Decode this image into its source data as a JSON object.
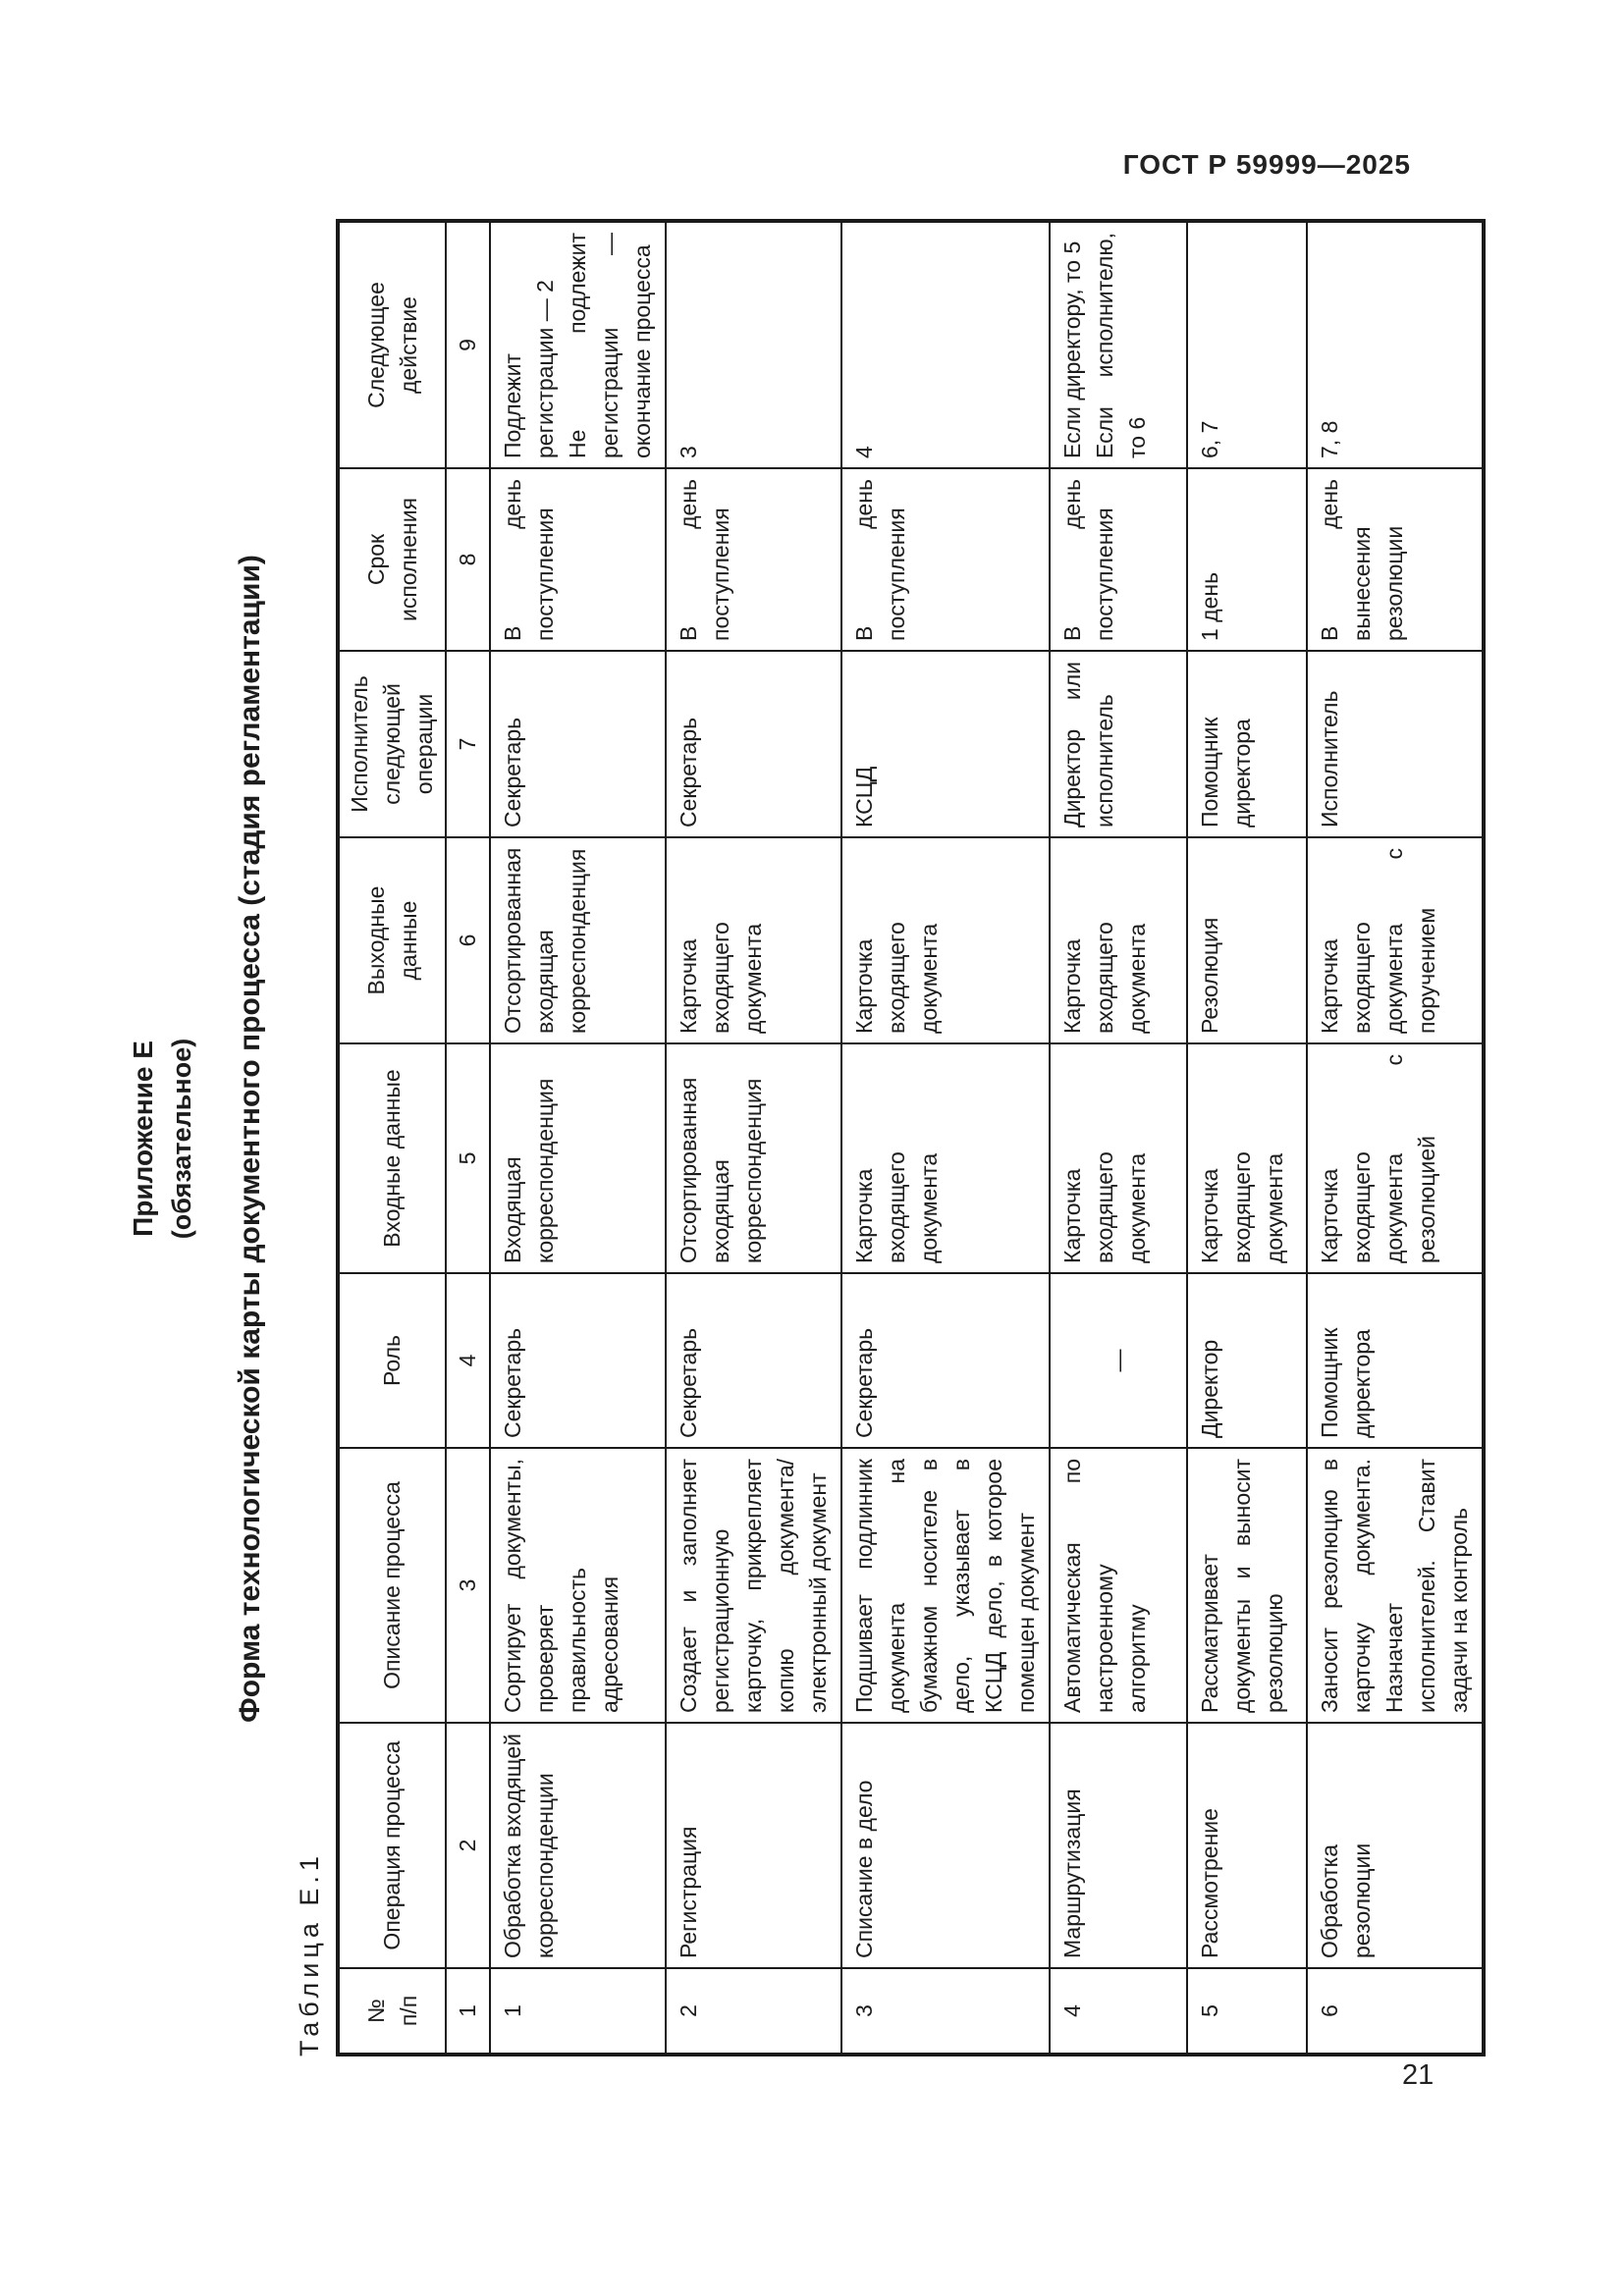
{
  "page": {
    "header": "ГОСТ Р 59999—2025",
    "page_number": "21",
    "appendix_title": "Приложение Е",
    "appendix_subtitle": "(обязательное)",
    "form_title": "Форма технологической карты документного процесса (стадия регламентации)",
    "table_caption": "Таблица Е.1"
  },
  "table": {
    "columns": [
      {
        "label": "№\nп/п",
        "num": "1"
      },
      {
        "label": "Операция процесса",
        "num": "2"
      },
      {
        "label": "Описание процесса",
        "num": "3"
      },
      {
        "label": "Роль",
        "num": "4"
      },
      {
        "label": "Входные данные",
        "num": "5"
      },
      {
        "label": "Выходные данные",
        "num": "6"
      },
      {
        "label": "Исполнитель следующей операции",
        "num": "7"
      },
      {
        "label": "Срок исполнения",
        "num": "8"
      },
      {
        "label": "Следующее действие",
        "num": "9"
      }
    ],
    "rows": [
      [
        "1",
        "Обработка входящей корреспонденции",
        "Сортирует документы, проверяет правильность адресования",
        "Секретарь",
        "Входящая корреспонденция",
        "Отсортированная входящая корреспонденция",
        "Секретарь",
        "В день поступления",
        "Подлежит регистрации — 2\nНе подлежит регистрации — окончание процесса"
      ],
      [
        "2",
        "Регистрация",
        "Создает и заполняет регистрационную карточку, прикрепляет копию документа/электронный документ",
        "Секретарь",
        "Отсортированная входящая корреспонденция",
        "Карточка входящего документа",
        "Секретарь",
        "В день поступления",
        "3"
      ],
      [
        "3",
        "Списание в дело",
        "Подшивает подлинник документа на бумажном носителе в дело, указывает в КСЦД дело, в которое помещен документ",
        "Секретарь",
        "Карточка входящего документа",
        "Карточка входящего документа",
        "КСЦД",
        "В день поступления",
        "4"
      ],
      [
        "4",
        "Маршрутизация",
        "Автоматическая по настроенному алгоритму",
        "—",
        "Карточка входящего документа",
        "Карточка входящего документа",
        "Директор или исполнитель",
        "В день поступления",
        "Если директору, то 5\nЕсли исполнителю, то 6"
      ],
      [
        "5",
        "Рассмотрение",
        "Рассматривает документы и выносит резолюцию",
        "Директор",
        "Карточка входящего документа",
        "Резолюция",
        "Помощник директора",
        "1 день",
        "6, 7"
      ],
      [
        "6",
        "Обработка резолюции",
        "Заносит резолюцию в карточку документа. Назначает исполнителей. Ставит задачи на контроль",
        "Помощник директора",
        "Карточка входящего документа с резолюцией",
        "Карточка входящего документа с поручением",
        "Исполнитель",
        "В день вынесения резолюции",
        "7, 8"
      ]
    ]
  }
}
